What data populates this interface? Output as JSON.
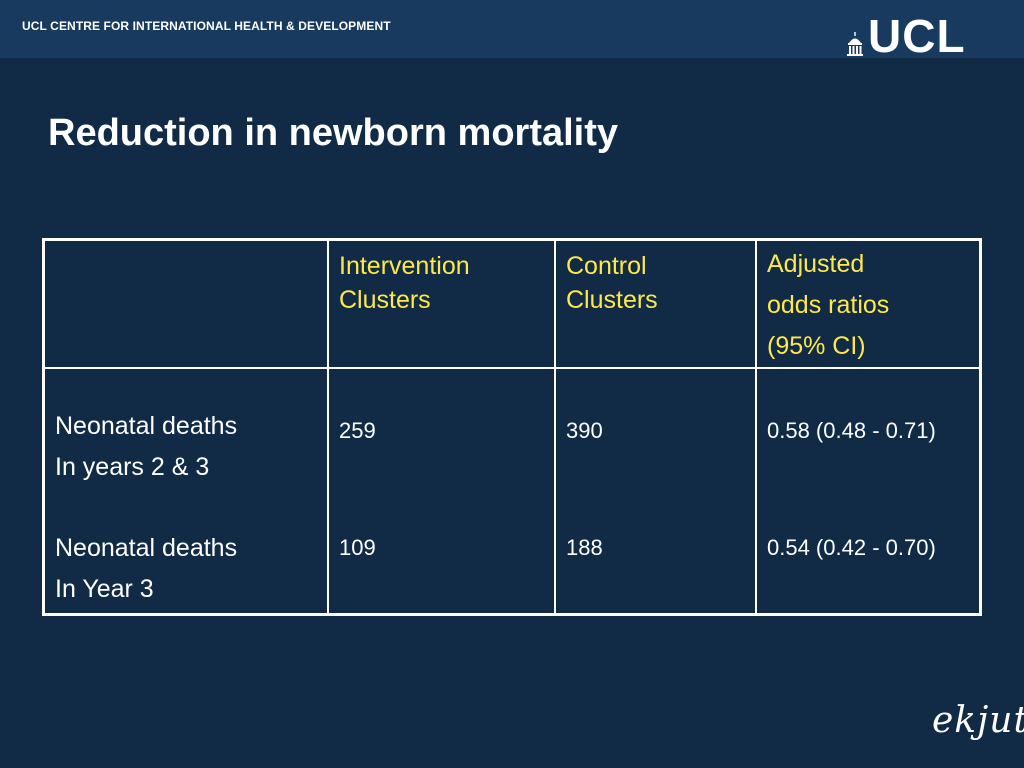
{
  "header": {
    "org_name": "UCL CENTRE FOR INTERNATIONAL HEALTH & DEVELOPMENT",
    "logo_text": "UCL"
  },
  "slide": {
    "title": "Reduction in newborn mortality"
  },
  "table": {
    "columns": [
      {
        "lines": []
      },
      {
        "lines": [
          "Intervention",
          "Clusters"
        ]
      },
      {
        "lines": [
          "Control",
          "Clusters"
        ]
      },
      {
        "lines": [
          "Adjusted",
          "odds ratios",
          "(95% CI)"
        ]
      }
    ],
    "rows": [
      {
        "label_lines": [
          "Neonatal deaths",
          "In years 2 & 3"
        ],
        "intervention": "259",
        "control": "390",
        "odds_ratio": "0.58 (0.48 - 0.71)"
      },
      {
        "label_lines": [
          "Neonatal deaths",
          "In Year 3"
        ],
        "intervention": "109",
        "control": "188",
        "odds_ratio": "0.54 (0.42 - 0.70)"
      }
    ]
  },
  "footer": {
    "logo_text": "ekjut"
  },
  "colors": {
    "background": "#112b47",
    "header_bar": "#183a5e",
    "header_text": "#ffe84a",
    "body_text": "#ffffff"
  }
}
